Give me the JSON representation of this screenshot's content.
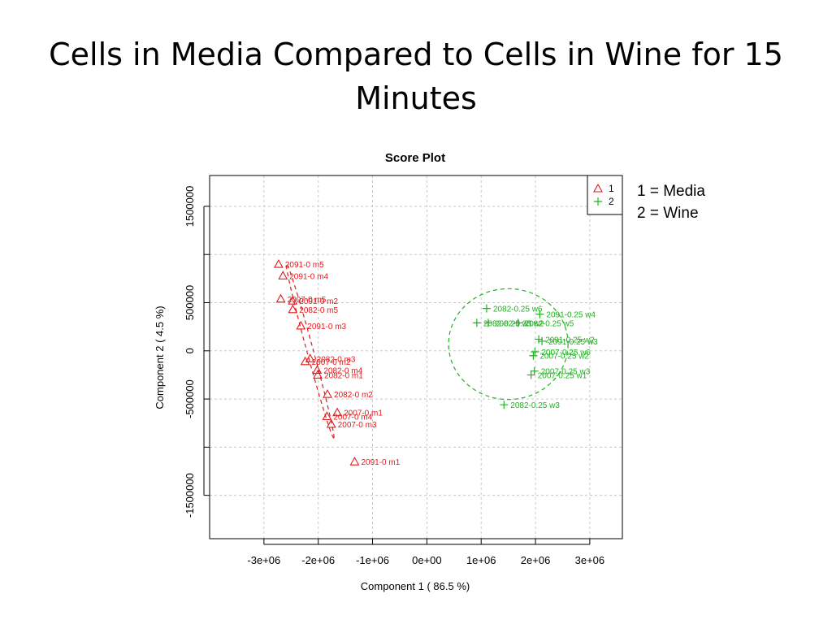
{
  "slide": {
    "title": "Cells in Media Compared to Cells in Wine for 15 Minutes",
    "notes": [
      "1 = Media",
      "2 = Wine"
    ]
  },
  "colors": {
    "group1": "#e31a1c",
    "group2": "#1db31d",
    "grid": "#c8c8c8",
    "axis": "#000000"
  },
  "chart_data": {
    "type": "scatter",
    "title": "Score Plot",
    "xlabel": "Component 1 ( 86.5 %)",
    "ylabel": "Component 2 ( 4.5 %)",
    "xlim": [
      -4000000,
      3600000
    ],
    "ylim": [
      -1950000,
      1820000
    ],
    "x_ticks": [
      -3000000,
      -2000000,
      -1000000,
      0,
      1000000,
      2000000,
      3000000
    ],
    "x_tick_labels": [
      "-3e+06",
      "-2e+06",
      "-1e+06",
      "0e+00",
      "1e+06",
      "2e+06",
      "3e+06"
    ],
    "y_ticks": [
      -1500000,
      -1000000,
      -500000,
      0,
      500000,
      1000000,
      1500000
    ],
    "y_tick_labels": [
      "-1500000",
      "",
      "-500000",
      "0",
      "500000",
      "",
      "1500000"
    ],
    "grid": true,
    "legend": {
      "placement": "top-right",
      "entries": [
        "1",
        "2"
      ]
    },
    "series": [
      {
        "name": "1",
        "marker": "triangle",
        "points": [
          {
            "label": "2091-0 m5",
            "x": -2730000,
            "y": 900000
          },
          {
            "label": "2091-0 m4",
            "x": -2650000,
            "y": 780000
          },
          {
            "label": "2007-0 m5",
            "x": -2690000,
            "y": 540000
          },
          {
            "label": "2091-0 m2",
            "x": -2470000,
            "y": 520000
          },
          {
            "label": "2082-0 m5",
            "x": -2470000,
            "y": 430000
          },
          {
            "label": "2091-0 m3",
            "x": -2320000,
            "y": 260000
          },
          {
            "label": "2082-0 m3",
            "x": -2150000,
            "y": -80000
          },
          {
            "label": "2007-0 m2",
            "x": -2240000,
            "y": -110000
          },
          {
            "label": "2082-0 m4",
            "x": -2020000,
            "y": -200000
          },
          {
            "label": "2082-0 m1",
            "x": -2010000,
            "y": -250000
          },
          {
            "label": "2082-0 m2",
            "x": -1830000,
            "y": -450000
          },
          {
            "label": "2007-0 m1",
            "x": -1650000,
            "y": -640000
          },
          {
            "label": "2007-0 m4",
            "x": -1840000,
            "y": -680000
          },
          {
            "label": "2007-0 m3",
            "x": -1760000,
            "y": -760000
          },
          {
            "label": "2091-0 m1",
            "x": -1330000,
            "y": -1150000
          }
        ],
        "ellipse": {
          "cx": -2150000,
          "cy": 0,
          "rx": 1665000,
          "ry": 60000,
          "angle_deg": 74.8
        }
      },
      {
        "name": "2",
        "marker": "plus",
        "points": [
          {
            "label": "2082-0.25 w6",
            "x": 1100000,
            "y": 440000
          },
          {
            "label": "2091-0.25 w4",
            "x": 2080000,
            "y": 380000
          },
          {
            "label": "2082-0.25 w1",
            "x": 920000,
            "y": 290000
          },
          {
            "label": "2082-0.25 w2",
            "x": 1130000,
            "y": 290000
          },
          {
            "label": "2082-0.25 w5",
            "x": 1680000,
            "y": 290000
          },
          {
            "label": "2091-0.25 w2",
            "x": 2060000,
            "y": 120000
          },
          {
            "label": "2091-0.25 w3",
            "x": 2120000,
            "y": 100000
          },
          {
            "label": "2007-0.25 w6",
            "x": 1990000,
            "y": -10000
          },
          {
            "label": "2007-0.25 w2",
            "x": 1960000,
            "y": -50000
          },
          {
            "label": "2007-0.25 w3",
            "x": 1980000,
            "y": -210000
          },
          {
            "label": "2007-0.25 w1",
            "x": 1920000,
            "y": -250000
          },
          {
            "label": "2082-0.25 w3",
            "x": 1420000,
            "y": -560000
          }
        ],
        "ellipse": {
          "cx": 1500000,
          "cy": 70000,
          "rx": 1100000,
          "ry": 575000,
          "angle_deg": 0
        }
      }
    ]
  }
}
